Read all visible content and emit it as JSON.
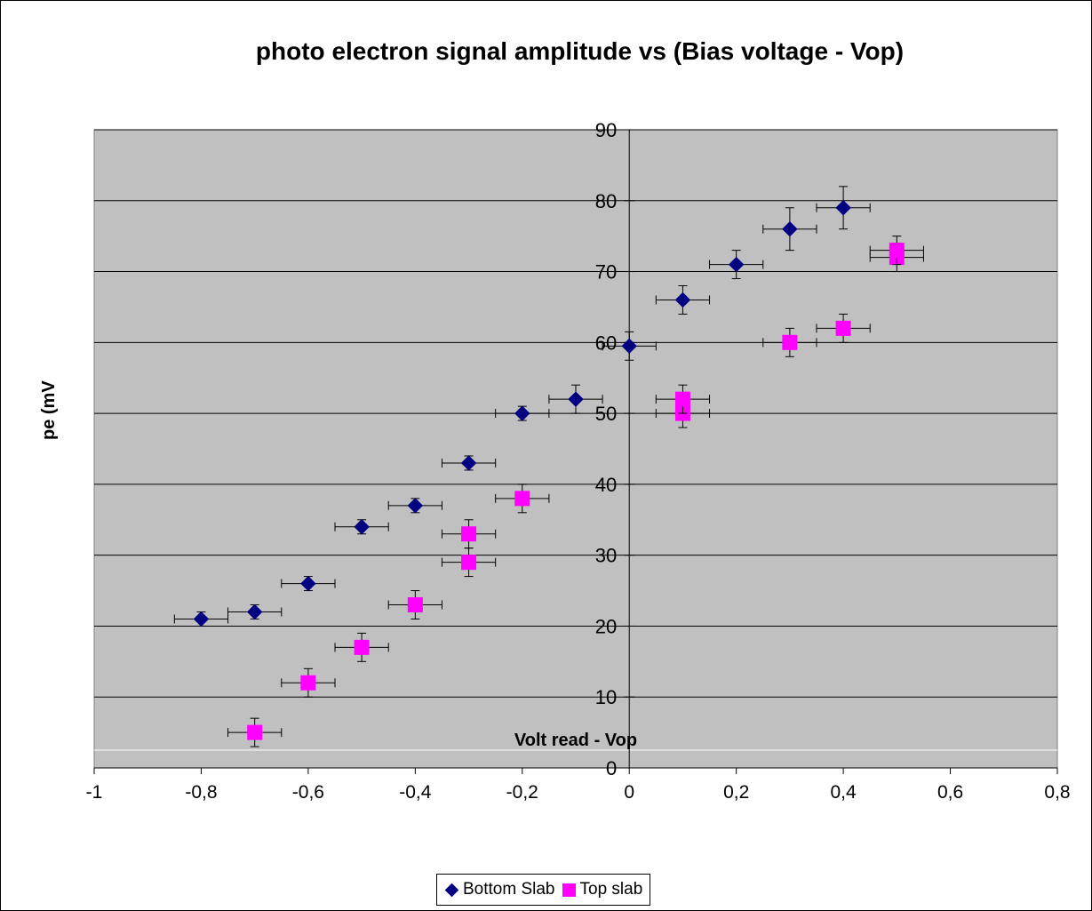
{
  "chart_data": {
    "type": "scatter",
    "title": "photo electron signal amplitude vs (Bias voltage - Vop)",
    "xlabel": "Volt read - Vop",
    "ylabel": "pe (mV",
    "xlim": [
      -1,
      0.8
    ],
    "ylim": [
      0,
      90
    ],
    "x_ticks": [
      "-1",
      "-0,8",
      "-0,6",
      "-0,4",
      "-0,2",
      "0",
      "0,2",
      "0,4",
      "0,6",
      "0,8"
    ],
    "y_ticks": [
      "0",
      "10",
      "20",
      "30",
      "40",
      "50",
      "60",
      "70",
      "80",
      "90"
    ],
    "grid": "horizontal",
    "legend_position": "bottom",
    "x_error": 0.05,
    "series": [
      {
        "name": "Bottom Slab",
        "marker": "diamond",
        "color": "#000080",
        "points": [
          {
            "x": -0.8,
            "y": 21,
            "yerr": 1
          },
          {
            "x": -0.7,
            "y": 22,
            "yerr": 1
          },
          {
            "x": -0.6,
            "y": 26,
            "yerr": 1
          },
          {
            "x": -0.5,
            "y": 34,
            "yerr": 1
          },
          {
            "x": -0.4,
            "y": 37,
            "yerr": 1
          },
          {
            "x": -0.3,
            "y": 43,
            "yerr": 1
          },
          {
            "x": -0.2,
            "y": 50,
            "yerr": 1
          },
          {
            "x": -0.1,
            "y": 52,
            "yerr": 2
          },
          {
            "x": 0.0,
            "y": 59.5,
            "yerr": 2
          },
          {
            "x": 0.1,
            "y": 66,
            "yerr": 2
          },
          {
            "x": 0.2,
            "y": 71,
            "yerr": 2
          },
          {
            "x": 0.3,
            "y": 76,
            "yerr": 3
          },
          {
            "x": 0.4,
            "y": 79,
            "yerr": 3
          }
        ]
      },
      {
        "name": "Top slab",
        "marker": "square",
        "color": "#ff00ff",
        "points": [
          {
            "x": -0.7,
            "y": 5,
            "yerr": 2
          },
          {
            "x": -0.6,
            "y": 12,
            "yerr": 2
          },
          {
            "x": -0.5,
            "y": 17,
            "yerr": 2
          },
          {
            "x": -0.4,
            "y": 23,
            "yerr": 2
          },
          {
            "x": -0.3,
            "y": 29,
            "yerr": 2
          },
          {
            "x": -0.3,
            "y": 33,
            "yerr": 2
          },
          {
            "x": -0.2,
            "y": 38,
            "yerr": 2
          },
          {
            "x": 0.1,
            "y": 50,
            "yerr": 2
          },
          {
            "x": 0.1,
            "y": 52,
            "yerr": 2
          },
          {
            "x": 0.3,
            "y": 60,
            "yerr": 2
          },
          {
            "x": 0.4,
            "y": 62,
            "yerr": 2
          },
          {
            "x": 0.5,
            "y": 72,
            "yerr": 2
          },
          {
            "x": 0.5,
            "y": 73,
            "yerr": 2
          }
        ]
      }
    ]
  }
}
